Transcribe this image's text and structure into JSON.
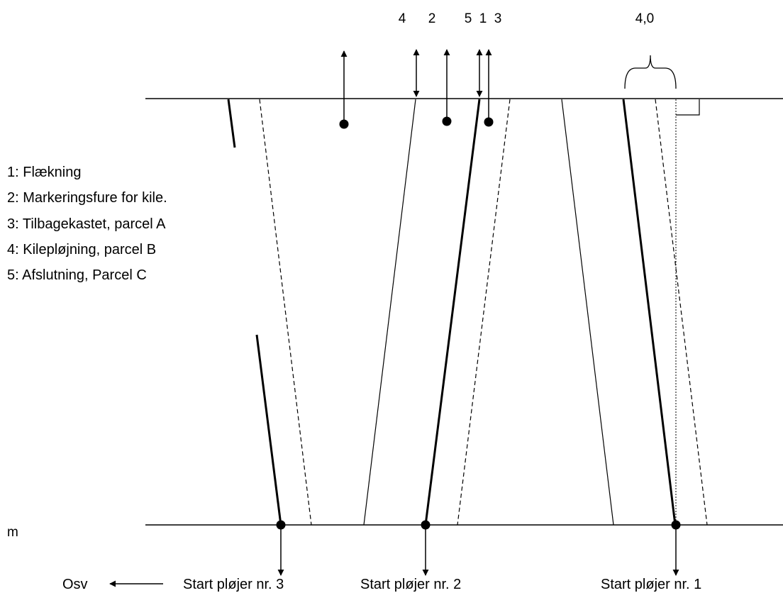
{
  "top_labels": {
    "n4": "4",
    "n2": "2",
    "n5": "5",
    "n1": "1",
    "n3": "3",
    "width": "4,0"
  },
  "legend": [
    "1: Flækning",
    "2: Markeringsfure for kile.",
    "3: Tilbagekastet, parcel A",
    "4: Kilepløjning, parcel B",
    "5: Afslutning, Parcel C"
  ],
  "unit_label": "m",
  "bottom": {
    "osv": "Osv",
    "start3": "Start pløjer nr. 3",
    "start2": "Start pløjer nr. 2",
    "start1": "Start pløjer nr. 1"
  }
}
